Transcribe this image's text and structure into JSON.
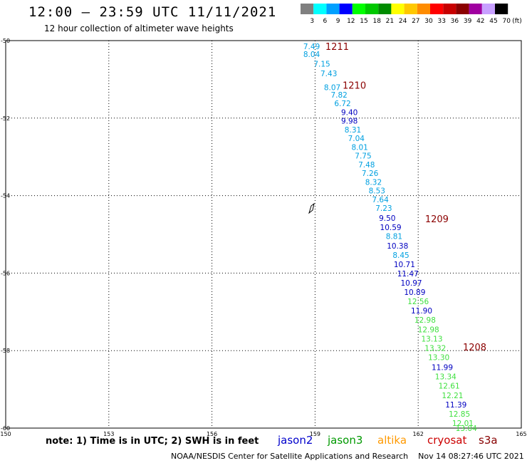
{
  "header": {
    "title": "12:00 – 23:59 UTC 11/11/2021",
    "subtitle": "12 hour collection of altimeter wave heights"
  },
  "colorbar": {
    "labels": [
      "3",
      "6",
      "9",
      "12",
      "15",
      "18",
      "21",
      "24",
      "27",
      "30",
      "33",
      "36",
      "39",
      "42",
      "45",
      "70"
    ],
    "unit": "(ft)",
    "colors": [
      "#808080",
      "#00ffff",
      "#00a0ff",
      "#0000ff",
      "#00ff00",
      "#00c800",
      "#008c00",
      "#ffff00",
      "#ffc800",
      "#ff8c00",
      "#ff0000",
      "#c80000",
      "#8b0000",
      "#a000a0",
      "#c8a0ff",
      "#000000"
    ]
  },
  "legend": {
    "note": "note: 1) Time is in UTC; 2) SWH is in feet",
    "satellites": [
      {
        "name": "jason2",
        "color": "#0000cc"
      },
      {
        "name": "jason3",
        "color": "#009900"
      },
      {
        "name": "altika",
        "color": "#ff9900"
      },
      {
        "name": "cryosat",
        "color": "#cc0000"
      },
      {
        "name": "s3a",
        "color": "#880000"
      }
    ]
  },
  "footer": {
    "credit": "NOAA/NESDIS Center for Satellite Applications and Research",
    "timestamp": "Nov 14 08:27:46 UTC 2021"
  },
  "map": {
    "lon_range": [
      150,
      165
    ],
    "lat_range": [
      -60,
      -50
    ],
    "lon_ticks": [
      "150",
      "153",
      "156",
      "159",
      "162",
      "165"
    ],
    "lat_ticks": [
      "-50",
      "-52",
      "-54",
      "-56",
      "-58",
      "-60"
    ],
    "grid": true
  },
  "chart_data": {
    "type": "scatter",
    "x_axis": "longitude",
    "y_axis": "latitude",
    "points": [
      {
        "lon": 158.9,
        "lat": -50.15,
        "text": "7.49",
        "c": "#00a0e0"
      },
      {
        "lon": 158.9,
        "lat": -50.35,
        "text": "8.04",
        "c": "#00a0e0"
      },
      {
        "lon": 159.2,
        "lat": -50.6,
        "text": "7.15",
        "c": "#00a0e0"
      },
      {
        "lon": 159.4,
        "lat": -50.85,
        "text": "7.43",
        "c": "#00a0e0"
      },
      {
        "lon": 159.5,
        "lat": -51.2,
        "text": "8.07",
        "c": "#00a0e0"
      },
      {
        "lon": 159.7,
        "lat": -51.4,
        "text": "7.82",
        "c": "#00a0e0"
      },
      {
        "lon": 159.8,
        "lat": -51.62,
        "text": "6.72",
        "c": "#00a0e0"
      },
      {
        "lon": 160.0,
        "lat": -51.85,
        "text": "9.40",
        "c": "#0000c0"
      },
      {
        "lon": 160.0,
        "lat": -52.07,
        "text": "9.98",
        "c": "#0000c0"
      },
      {
        "lon": 160.1,
        "lat": -52.3,
        "text": "8.31",
        "c": "#00a0e0"
      },
      {
        "lon": 160.2,
        "lat": -52.52,
        "text": "7.04",
        "c": "#00a0e0"
      },
      {
        "lon": 160.3,
        "lat": -52.75,
        "text": "8.01",
        "c": "#00a0e0"
      },
      {
        "lon": 160.4,
        "lat": -52.97,
        "text": "7.75",
        "c": "#00a0e0"
      },
      {
        "lon": 160.5,
        "lat": -53.2,
        "text": "7.48",
        "c": "#00a0e0"
      },
      {
        "lon": 160.6,
        "lat": -53.42,
        "text": "7.26",
        "c": "#00a0e0"
      },
      {
        "lon": 160.7,
        "lat": -53.65,
        "text": "8.32",
        "c": "#00a0e0"
      },
      {
        "lon": 160.8,
        "lat": -53.87,
        "text": "8.53",
        "c": "#00a0e0"
      },
      {
        "lon": 160.9,
        "lat": -54.1,
        "text": "7.64",
        "c": "#00a0e0"
      },
      {
        "lon": 161.0,
        "lat": -54.32,
        "text": "7.23",
        "c": "#00a0e0"
      },
      {
        "lon": 161.1,
        "lat": -54.58,
        "text": "9.50",
        "c": "#0000c0"
      },
      {
        "lon": 161.2,
        "lat": -54.82,
        "text": "10.59",
        "c": "#0000c0"
      },
      {
        "lon": 161.3,
        "lat": -55.05,
        "text": "8.81",
        "c": "#00a0e0"
      },
      {
        "lon": 161.4,
        "lat": -55.29,
        "text": "10.38",
        "c": "#0000c0"
      },
      {
        "lon": 161.5,
        "lat": -55.53,
        "text": "8.45",
        "c": "#00a0e0"
      },
      {
        "lon": 161.6,
        "lat": -55.77,
        "text": "10.71",
        "c": "#0000c0"
      },
      {
        "lon": 161.7,
        "lat": -56.01,
        "text": "11.47",
        "c": "#0000c0"
      },
      {
        "lon": 161.8,
        "lat": -56.25,
        "text": "10.97",
        "c": "#0000c0"
      },
      {
        "lon": 161.9,
        "lat": -56.49,
        "text": "10.89",
        "c": "#0000c0"
      },
      {
        "lon": 162.0,
        "lat": -56.73,
        "text": "12.56",
        "c": "#40e040"
      },
      {
        "lon": 162.1,
        "lat": -56.97,
        "text": "11.90",
        "c": "#0000c0"
      },
      {
        "lon": 162.2,
        "lat": -57.21,
        "text": "12.98",
        "c": "#40e040"
      },
      {
        "lon": 162.3,
        "lat": -57.45,
        "text": "12.98",
        "c": "#40e040"
      },
      {
        "lon": 162.4,
        "lat": -57.69,
        "text": "13.13",
        "c": "#40e040"
      },
      {
        "lon": 162.5,
        "lat": -57.93,
        "text": "13.32",
        "c": "#40e040"
      },
      {
        "lon": 162.6,
        "lat": -58.17,
        "text": "13.30",
        "c": "#40e040"
      },
      {
        "lon": 162.7,
        "lat": -58.43,
        "text": "11.99",
        "c": "#0000c0"
      },
      {
        "lon": 162.8,
        "lat": -58.67,
        "text": "13.34",
        "c": "#40e040"
      },
      {
        "lon": 162.9,
        "lat": -58.91,
        "text": "12.61",
        "c": "#40e040"
      },
      {
        "lon": 163.0,
        "lat": -59.15,
        "text": "12.21",
        "c": "#40e040"
      },
      {
        "lon": 163.1,
        "lat": -59.39,
        "text": "11.39",
        "c": "#0000c0"
      },
      {
        "lon": 163.2,
        "lat": -59.63,
        "text": "12.85",
        "c": "#40e040"
      },
      {
        "lon": 163.3,
        "lat": -59.87,
        "text": "12.01",
        "c": "#40e040"
      },
      {
        "lon": 163.4,
        "lat": -60.0,
        "text": "13.04",
        "c": "#40e040"
      }
    ],
    "time_labels": [
      {
        "lon": 159.3,
        "lat": -50.15,
        "text": "1211"
      },
      {
        "lon": 159.8,
        "lat": -51.15,
        "text": "1210"
      },
      {
        "lon": 162.2,
        "lat": -54.6,
        "text": "1209"
      },
      {
        "lon": 163.3,
        "lat": -57.9,
        "text": "1208"
      }
    ]
  }
}
